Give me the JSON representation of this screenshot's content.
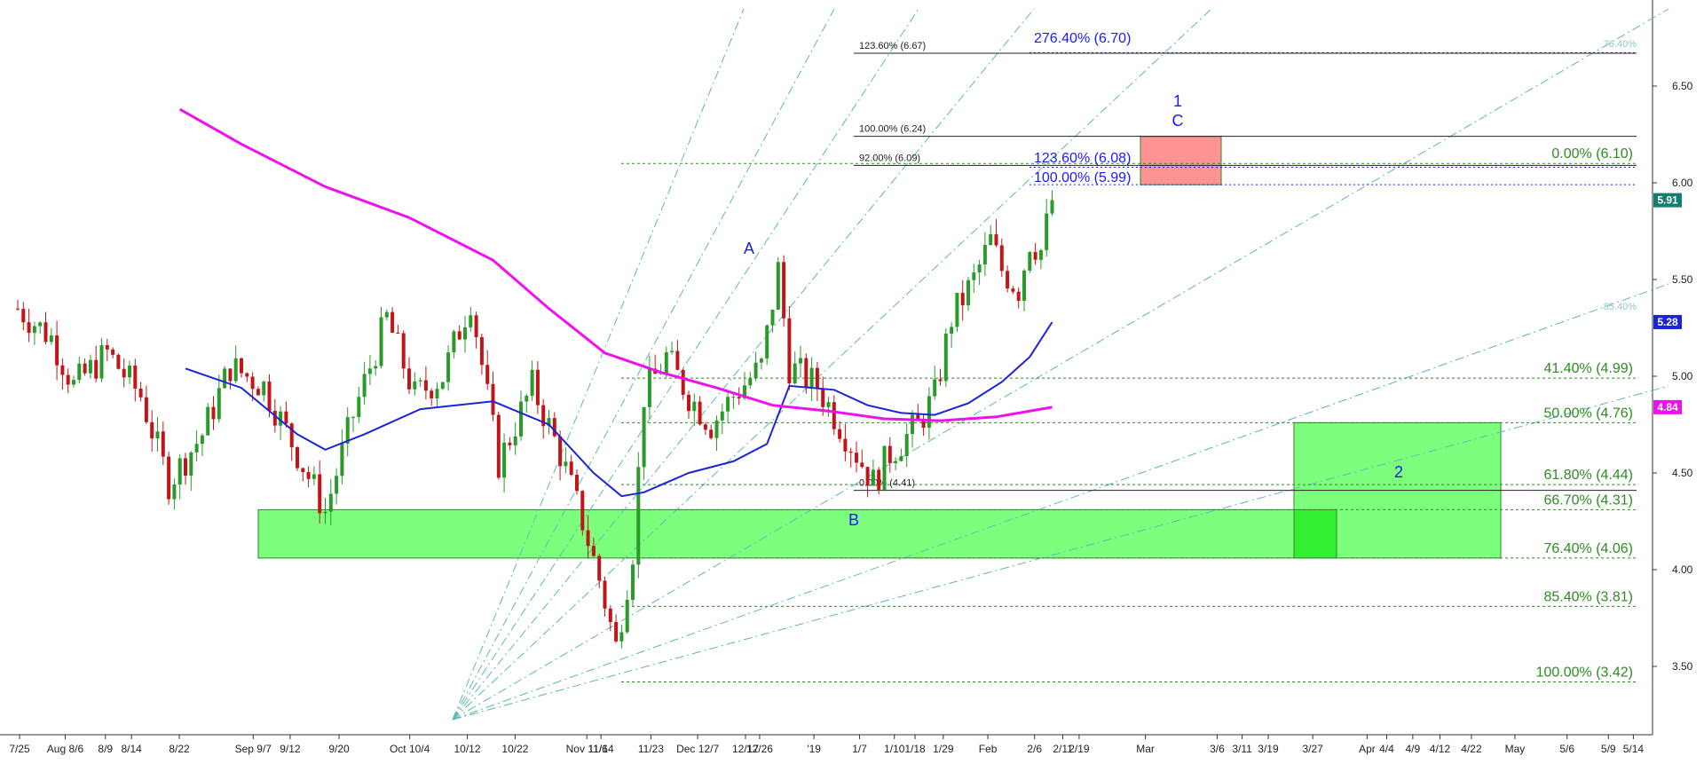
{
  "chart_data": {
    "type": "candlestick",
    "title": "",
    "xlabel": "",
    "ylabel": "",
    "ylim": [
      3.2,
      6.9
    ],
    "y_ticks": [
      "3.50",
      "4.00",
      "4.50",
      "5.00",
      "5.50",
      "6.00",
      "6.50"
    ],
    "x_ticks": [
      "7/25",
      "Aug 8/6",
      "8/9",
      "8/14",
      "8/22",
      "Sep 9/7",
      "9/12",
      "9/20",
      "Oct 10/4",
      "10/12",
      "10/22",
      "Nov 11/6",
      "11/14",
      "11/23",
      "Dec 12/7",
      "12/17",
      "12/26",
      "'19",
      "1/7",
      "1/10",
      "1/18",
      "1/29",
      "Feb",
      "2/6",
      "2/11",
      "2/19",
      "Mar",
      "3/6",
      "3/11",
      "3/19",
      "3/27",
      "Apr",
      "4/4",
      "4/9",
      "4/12",
      "4/22",
      "May",
      "5/6",
      "5/9",
      "5/14"
    ],
    "price_path": [
      [
        0,
        5.35
      ],
      [
        6,
        5.2
      ],
      [
        10,
        4.95
      ],
      [
        16,
        5.12
      ],
      [
        22,
        4.9
      ],
      [
        27,
        4.45
      ],
      [
        33,
        4.7
      ],
      [
        38,
        5.05
      ],
      [
        44,
        4.95
      ],
      [
        50,
        4.6
      ],
      [
        55,
        4.3
      ],
      [
        60,
        4.8
      ],
      [
        66,
        5.3
      ],
      [
        71,
        4.9
      ],
      [
        76,
        5.0
      ],
      [
        81,
        5.4
      ],
      [
        86,
        4.55
      ],
      [
        92,
        4.95
      ],
      [
        97,
        4.6
      ],
      [
        101,
        4.25
      ],
      [
        104,
        3.95
      ],
      [
        107,
        3.6
      ],
      [
        110,
        4.1
      ],
      [
        112,
        4.9
      ],
      [
        116,
        5.1
      ],
      [
        120,
        4.9
      ],
      [
        124,
        4.75
      ],
      [
        128,
        4.9
      ],
      [
        133,
        5.05
      ],
      [
        136,
        5.55
      ],
      [
        138,
        5.05
      ],
      [
        143,
        4.95
      ],
      [
        147,
        4.75
      ],
      [
        151,
        4.55
      ],
      [
        153,
        4.45
      ],
      [
        156,
        4.6
      ],
      [
        161,
        4.75
      ],
      [
        164,
        4.9
      ],
      [
        167,
        5.3
      ],
      [
        171,
        5.5
      ],
      [
        174,
        5.7
      ],
      [
        176,
        5.55
      ],
      [
        179,
        5.45
      ],
      [
        181,
        5.7
      ],
      [
        183,
        5.65
      ],
      [
        185,
        5.91
      ]
    ],
    "last_index": 185,
    "series": [
      {
        "name": "",
        "color": "#1c24d8",
        "points": [
          [
            30,
            5.04
          ],
          [
            40,
            4.94
          ],
          [
            50,
            4.7
          ],
          [
            55,
            4.62
          ],
          [
            62,
            4.7
          ],
          [
            72,
            4.83
          ],
          [
            85,
            4.87
          ],
          [
            95,
            4.75
          ],
          [
            103,
            4.5
          ],
          [
            108,
            4.38
          ],
          [
            112,
            4.4
          ],
          [
            120,
            4.5
          ],
          [
            128,
            4.56
          ],
          [
            134,
            4.65
          ],
          [
            138,
            4.95
          ],
          [
            146,
            4.93
          ],
          [
            152,
            4.85
          ],
          [
            158,
            4.81
          ],
          [
            164,
            4.8
          ],
          [
            170,
            4.86
          ],
          [
            176,
            4.97
          ],
          [
            181,
            5.1
          ],
          [
            185,
            5.28
          ]
        ]
      },
      {
        "name": "",
        "color": "#ee10ee",
        "points": [
          [
            29,
            6.38
          ],
          [
            40,
            6.2
          ],
          [
            55,
            5.98
          ],
          [
            70,
            5.82
          ],
          [
            85,
            5.6
          ],
          [
            95,
            5.35
          ],
          [
            105,
            5.12
          ],
          [
            115,
            5.02
          ],
          [
            125,
            4.94
          ],
          [
            135,
            4.85
          ],
          [
            145,
            4.82
          ],
          [
            155,
            4.78
          ],
          [
            165,
            4.77
          ],
          [
            175,
            4.79
          ],
          [
            185,
            4.84
          ]
        ]
      }
    ],
    "badges": [
      {
        "text": "5.91",
        "value": 5.91,
        "color": "#137e6e"
      },
      {
        "text": "5.28",
        "value": 5.28,
        "color": "#1c24d8"
      },
      {
        "text": "4.84",
        "value": 4.84,
        "color": "#ee10ee"
      }
    ],
    "fib_retracement": [
      {
        "label": "0.00% (6.10)",
        "value": 6.1
      },
      {
        "label": "41.40% (4.99)",
        "value": 4.99
      },
      {
        "label": "50.00% (4.76)",
        "value": 4.76
      },
      {
        "label": "61.80% (4.44)",
        "value": 4.44
      },
      {
        "label": "66.70% (4.31)",
        "value": 4.31
      },
      {
        "label": "76.40% (4.06)",
        "value": 4.06
      },
      {
        "label": "85.40% (3.81)",
        "value": 3.81
      },
      {
        "label": "100.00% (3.42)",
        "value": 3.42
      }
    ],
    "fib_extension_blue": [
      {
        "label": "276.40% (6.70)",
        "value": 6.7
      },
      {
        "label": "123.60% (6.08)",
        "value": 6.08
      },
      {
        "label": "100.00% (5.99)",
        "value": 5.99
      }
    ],
    "fib_extension_black": [
      {
        "label": "123.60% (6.67)",
        "value": 6.67
      },
      {
        "label": "100.00% (6.24)",
        "value": 6.24
      },
      {
        "label": "92.00% (6.09)",
        "value": 6.09
      },
      {
        "label": "0.00% (4.41)",
        "value": 4.41
      }
    ],
    "fan_labels": [
      "76.40%",
      "85.40%"
    ],
    "waves": [
      "A",
      "B",
      "1",
      "C",
      "2"
    ],
    "zones": [
      {
        "name": "support-zone",
        "low": 4.06,
        "high": 4.31,
        "color": "#66ff66"
      },
      {
        "name": "target-zone-2",
        "low": 4.06,
        "high": 4.76,
        "color": "#66ff66"
      },
      {
        "name": "target-zone-1",
        "low": 5.99,
        "high": 6.24,
        "color": "#ff8080"
      }
    ],
    "colors": {
      "up": "#2a9a2a",
      "down": "#c0161a",
      "fib_green": "#2e8b22",
      "fib_blue": "#1a1aff",
      "fan": "#5fb7b0"
    },
    "grid": false,
    "legend": "none"
  }
}
